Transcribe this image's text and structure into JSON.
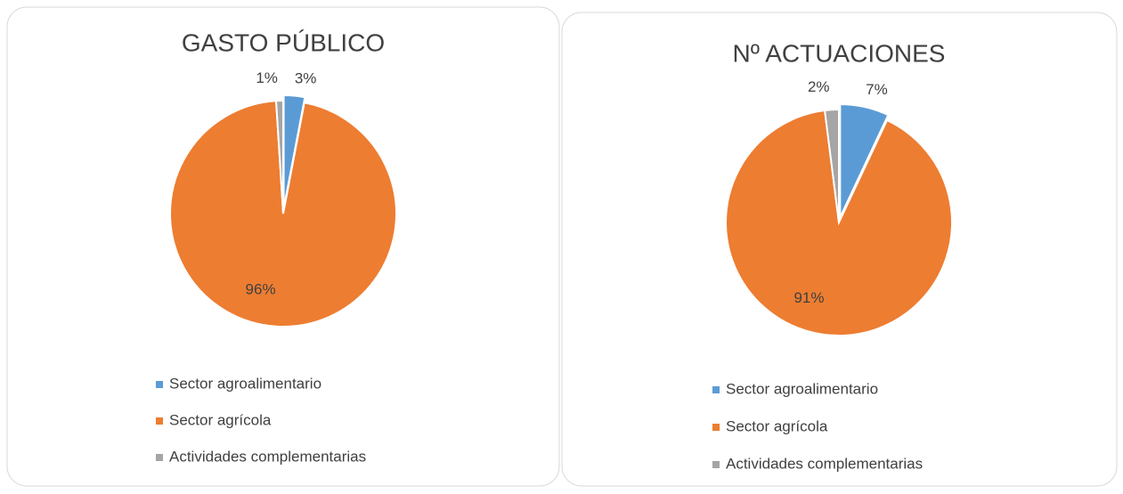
{
  "chart_data": [
    {
      "type": "pie",
      "title": "GASTO PÚBLICO",
      "categories": [
        "Sector agroalimentario",
        "Sector agrícola",
        "Actividades complementarias"
      ],
      "values": [
        3,
        96,
        1
      ],
      "value_labels": [
        "3%",
        "96%",
        "1%"
      ],
      "colors": [
        "#5b9bd5",
        "#ed7d31",
        "#a5a5a5"
      ],
      "legend": "bottom"
    },
    {
      "type": "pie",
      "title": "Nº ACTUACIONES",
      "categories": [
        "Sector agroalimentario",
        "Sector agrícola",
        "Actividades complementarias"
      ],
      "values": [
        7,
        91,
        2
      ],
      "value_labels": [
        "7%",
        "91%",
        "2%"
      ],
      "colors": [
        "#5b9bd5",
        "#ed7d31",
        "#a5a5a5"
      ],
      "legend": "bottom"
    }
  ]
}
